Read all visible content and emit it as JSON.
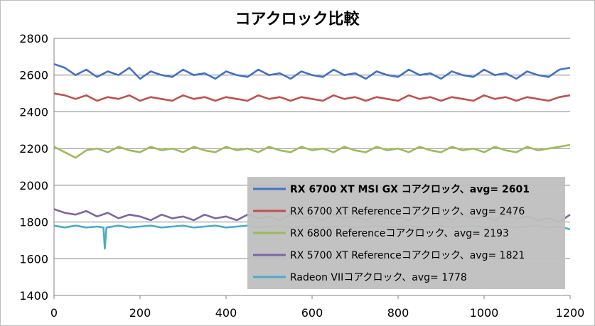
{
  "chart_data": {
    "type": "line",
    "title": "コアクロック比較",
    "xlabel": "",
    "ylabel": "",
    "xlim": [
      0,
      1200
    ],
    "ylim": [
      1400,
      2800
    ],
    "xticks": [
      0,
      200,
      400,
      600,
      800,
      1000,
      1200
    ],
    "yticks": [
      1400,
      1600,
      1800,
      2000,
      2200,
      2400,
      2600,
      2800
    ],
    "grid": "horizontal",
    "legend_position": "bottom-right",
    "series": [
      {
        "name": "RX 6700 XT MSI GX コアクロック、avg= 2601",
        "color": "#4472c4",
        "bold": true,
        "x": [
          0,
          25,
          50,
          75,
          100,
          125,
          150,
          175,
          200,
          225,
          250,
          275,
          300,
          325,
          350,
          375,
          400,
          425,
          450,
          475,
          500,
          525,
          550,
          575,
          600,
          625,
          650,
          675,
          700,
          725,
          750,
          775,
          800,
          825,
          850,
          875,
          900,
          925,
          950,
          975,
          1000,
          1025,
          1050,
          1075,
          1100,
          1125,
          1150,
          1175,
          1200
        ],
        "y": [
          2660,
          2640,
          2600,
          2630,
          2590,
          2620,
          2600,
          2640,
          2580,
          2620,
          2600,
          2590,
          2630,
          2600,
          2610,
          2580,
          2620,
          2600,
          2590,
          2630,
          2600,
          2610,
          2580,
          2620,
          2600,
          2590,
          2630,
          2600,
          2610,
          2580,
          2620,
          2600,
          2590,
          2630,
          2600,
          2610,
          2580,
          2620,
          2600,
          2590,
          2630,
          2600,
          2610,
          2580,
          2620,
          2600,
          2590,
          2630,
          2640
        ]
      },
      {
        "name": "RX 6700 XT Referenceコアクロック、avg= 2476",
        "color": "#c0504d",
        "bold": false,
        "x": [
          0,
          25,
          50,
          75,
          100,
          125,
          150,
          175,
          200,
          225,
          250,
          275,
          300,
          325,
          350,
          375,
          400,
          425,
          450,
          475,
          500,
          525,
          550,
          575,
          600,
          625,
          650,
          675,
          700,
          725,
          750,
          775,
          800,
          825,
          850,
          875,
          900,
          925,
          950,
          975,
          1000,
          1025,
          1050,
          1075,
          1100,
          1125,
          1150,
          1175,
          1200
        ],
        "y": [
          2500,
          2490,
          2470,
          2490,
          2460,
          2480,
          2470,
          2490,
          2460,
          2480,
          2470,
          2460,
          2490,
          2470,
          2480,
          2460,
          2480,
          2470,
          2460,
          2490,
          2470,
          2480,
          2460,
          2480,
          2470,
          2460,
          2490,
          2470,
          2480,
          2460,
          2480,
          2470,
          2460,
          2490,
          2470,
          2480,
          2460,
          2480,
          2470,
          2460,
          2490,
          2470,
          2480,
          2460,
          2480,
          2470,
          2460,
          2480,
          2490
        ]
      },
      {
        "name": "RX 6800 Referenceコアクロック、avg= 2193",
        "color": "#9bbb59",
        "bold": false,
        "x": [
          0,
          25,
          50,
          75,
          100,
          125,
          150,
          175,
          200,
          225,
          250,
          275,
          300,
          325,
          350,
          375,
          400,
          425,
          450,
          475,
          500,
          525,
          550,
          575,
          600,
          625,
          650,
          675,
          700,
          725,
          750,
          775,
          800,
          825,
          850,
          875,
          900,
          925,
          950,
          975,
          1000,
          1025,
          1050,
          1075,
          1100,
          1125,
          1150,
          1175,
          1200
        ],
        "y": [
          2210,
          2180,
          2150,
          2190,
          2200,
          2180,
          2210,
          2190,
          2180,
          2210,
          2190,
          2200,
          2180,
          2210,
          2190,
          2180,
          2210,
          2190,
          2200,
          2180,
          2210,
          2190,
          2180,
          2210,
          2190,
          2200,
          2180,
          2210,
          2190,
          2180,
          2210,
          2190,
          2200,
          2180,
          2210,
          2190,
          2180,
          2210,
          2190,
          2200,
          2180,
          2210,
          2190,
          2180,
          2210,
          2190,
          2200,
          2210,
          2220
        ]
      },
      {
        "name": "RX 5700 XT Referenceコアクロック、avg= 1821",
        "color": "#8064a2",
        "bold": false,
        "x": [
          0,
          25,
          50,
          75,
          100,
          125,
          150,
          175,
          200,
          225,
          250,
          275,
          300,
          325,
          350,
          375,
          400,
          425,
          450,
          475,
          500,
          525,
          550,
          575,
          600,
          625,
          650,
          675,
          700,
          725,
          750,
          775,
          800,
          825,
          850,
          875,
          900,
          925,
          950,
          975,
          1000,
          1025,
          1050,
          1075,
          1100,
          1125,
          1150,
          1175,
          1200
        ],
        "y": [
          1870,
          1850,
          1840,
          1860,
          1830,
          1850,
          1820,
          1840,
          1830,
          1810,
          1840,
          1820,
          1830,
          1810,
          1840,
          1820,
          1830,
          1810,
          1840,
          1820,
          1830,
          1810,
          1840,
          1820,
          1830,
          1810,
          1840,
          1820,
          1830,
          1810,
          1840,
          1820,
          1830,
          1810,
          1840,
          1820,
          1830,
          1810,
          1840,
          1820,
          1830,
          1810,
          1840,
          1820,
          1830,
          1810,
          1820,
          1800,
          1840
        ]
      },
      {
        "name": "Radeon VIIコアクロック、avg= 1778",
        "color": "#4bacc6",
        "bold": false,
        "x": [
          0,
          25,
          50,
          75,
          100,
          115,
          118,
          122,
          150,
          175,
          200,
          225,
          250,
          275,
          300,
          325,
          350,
          375,
          400,
          425,
          450,
          475,
          500,
          525,
          550,
          575,
          600,
          625,
          650,
          675,
          700,
          725,
          750,
          775,
          800,
          825,
          850,
          875,
          900,
          925,
          950,
          975,
          1000,
          1025,
          1050,
          1075,
          1100,
          1125,
          1150,
          1175,
          1200
        ],
        "y": [
          1780,
          1770,
          1780,
          1770,
          1775,
          1770,
          1655,
          1770,
          1780,
          1770,
          1775,
          1780,
          1770,
          1775,
          1780,
          1770,
          1775,
          1780,
          1770,
          1775,
          1780,
          1770,
          1775,
          1780,
          1770,
          1775,
          1780,
          1770,
          1775,
          1780,
          1770,
          1775,
          1780,
          1770,
          1775,
          1780,
          1770,
          1775,
          1780,
          1770,
          1775,
          1780,
          1770,
          1775,
          1780,
          1770,
          1775,
          1780,
          1770,
          1775,
          1760
        ]
      }
    ]
  }
}
